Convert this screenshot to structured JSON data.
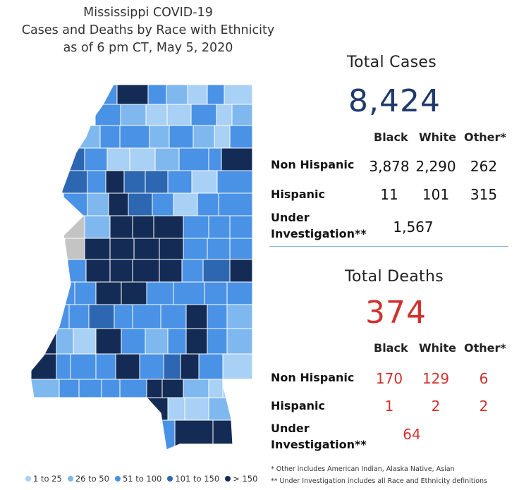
{
  "title": {
    "line1": "Mississippi COVID-19",
    "line2": "Cases and Deaths by Race with Ethnicity",
    "line3": "as of 6 pm CT, May 5, 2020"
  },
  "colors": {
    "bin_1": "#a9d0f5",
    "bin_2": "#7fb8ee",
    "bin_3": "#4a92e6",
    "bin_4": "#2e67b1",
    "bin_5": "#142c55",
    "no_data": "#c4c4c4",
    "border": "#ffffff",
    "cases_number": "#1e3a6b",
    "deaths_number": "#d0312d"
  },
  "legend": [
    {
      "label": "1 to 25",
      "color": "#a9d0f5"
    },
    {
      "label": "26 to 50",
      "color": "#7fb8ee"
    },
    {
      "label": "51 to 100",
      "color": "#4a92e6"
    },
    {
      "label": "101 to 150",
      "color": "#2e67b1"
    },
    {
      "label": "> 150",
      "color": "#142c55"
    }
  ],
  "cases": {
    "title": "Total Cases",
    "total": "8,424",
    "columns": [
      "Black",
      "White",
      "Other*"
    ],
    "non_hispanic_label": "Non Hispanic",
    "non_hispanic": [
      "3,878",
      "2,290",
      "262"
    ],
    "hispanic_label": "Hispanic",
    "hispanic": [
      "11",
      "101",
      "315"
    ],
    "under_label_1": "Under",
    "under_label_2": "Investigation**",
    "under_investigation": "1,567"
  },
  "deaths": {
    "title": "Total Deaths",
    "total": "374",
    "columns": [
      "Black",
      "White",
      "Other*"
    ],
    "non_hispanic_label": "Non Hispanic",
    "non_hispanic": [
      "170",
      "129",
      "6"
    ],
    "hispanic_label": "Hispanic",
    "hispanic": [
      "1",
      "2",
      "2"
    ],
    "under_label_1": "Under",
    "under_label_2": "Investigation**",
    "under_investigation": "64"
  },
  "footnotes": {
    "other": "* Other includes American Indian, Alaska Native, Asian",
    "under": "** Under Investigation includes all Race and Ethnicity definitions"
  }
}
